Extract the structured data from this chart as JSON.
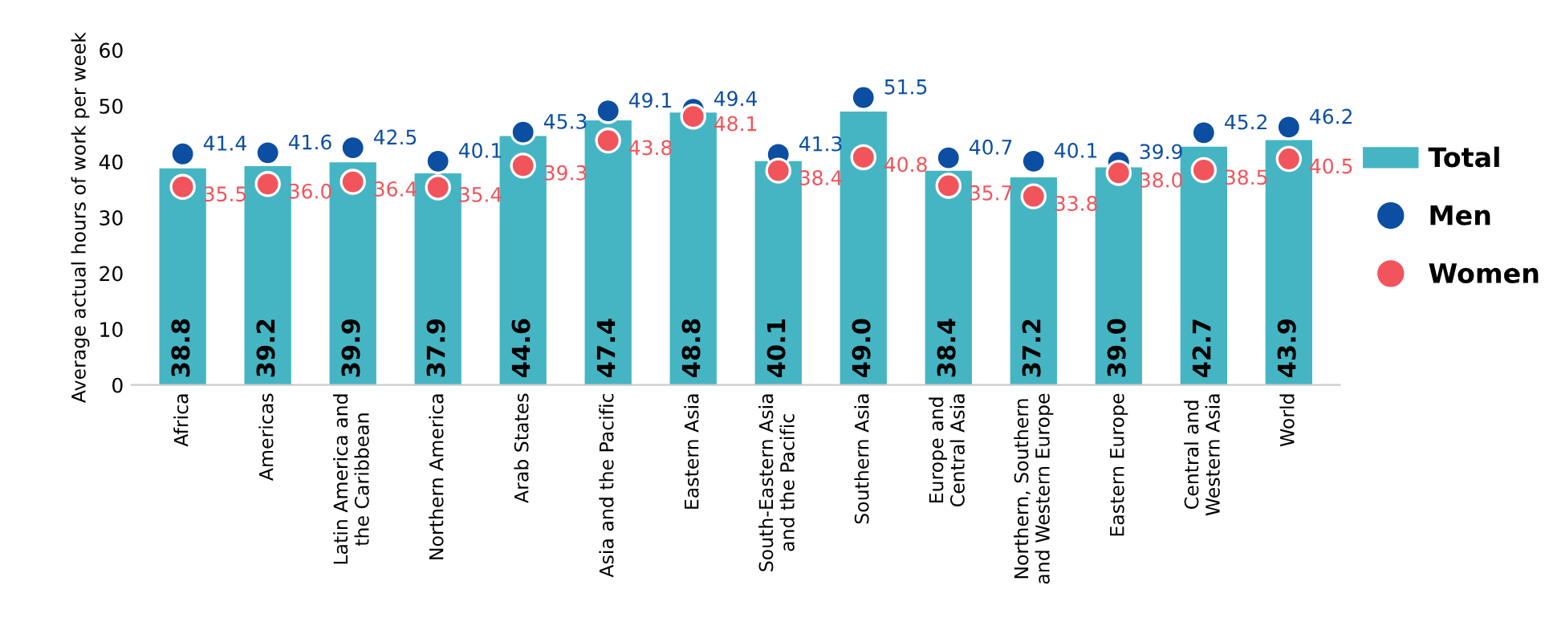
{
  "chart_data": {
    "type": "bar",
    "ylabel": "Average actual hours of work per week",
    "categories": [
      "Africa",
      "Americas",
      "Latin America and\nthe Caribbean",
      "Northern America",
      "Arab States",
      "Asia and the Pacific",
      "Eastern Asia",
      "South-Eastern Asia\nand the Pacific",
      "Southern Asia",
      "Europe and\nCentral Asia",
      "Northern, Southern\nand Western Europe",
      "Eastern Europe",
      "Central and\nWestern Asia",
      "World"
    ],
    "series": [
      {
        "name": "Total",
        "color": "#45b5c4",
        "values": [
          38.8,
          39.2,
          39.9,
          37.9,
          44.6,
          47.4,
          48.8,
          40.1,
          49.0,
          38.4,
          37.2,
          39.0,
          42.7,
          43.9
        ],
        "value_labels": [
          "38.8",
          "39.2",
          "39.9",
          "37.9",
          "44.6",
          "47.4",
          "48.8",
          "40.1",
          "49.0",
          "38.4",
          "37.2",
          "39.0",
          "42.7",
          "43.9"
        ]
      },
      {
        "name": "Men",
        "type": "scatter",
        "color": "#0b4ea2",
        "values": [
          41.4,
          41.6,
          42.5,
          40.1,
          45.3,
          49.1,
          49.4,
          41.3,
          51.5,
          40.7,
          40.1,
          39.9,
          45.2,
          46.2
        ],
        "value_labels": [
          "41.4",
          "41.6",
          "42.5",
          "40.1",
          "45.3",
          "49.1",
          "49.4",
          "41.3",
          "51.5",
          "40.7",
          "40.1",
          "39.9",
          "45.2",
          "46.2"
        ]
      },
      {
        "name": "Women",
        "type": "scatter",
        "color": "#f2545b",
        "values": [
          35.5,
          36.0,
          36.4,
          35.4,
          39.3,
          43.8,
          48.1,
          38.4,
          40.8,
          35.7,
          33.8,
          38.0,
          38.5,
          40.5
        ],
        "value_labels": [
          "35.5",
          "36.0",
          "36.4",
          "35.4",
          "39.3",
          "43.8",
          "48.1",
          "38.4",
          "40.8",
          "35.7",
          "33.8",
          "38.0",
          "38.5",
          "40.5"
        ]
      }
    ],
    "ylim": [
      0,
      60
    ],
    "yticks": [
      0,
      10,
      20,
      30,
      40,
      50,
      60
    ],
    "legend": "right",
    "marker": "circle",
    "grid": false
  }
}
